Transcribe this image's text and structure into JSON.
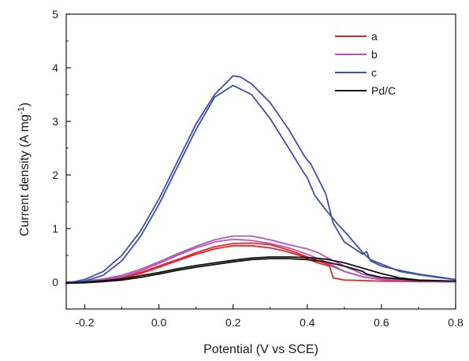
{
  "chart_data": {
    "type": "line",
    "title": "",
    "xlabel": "Potential (V vs SCE)",
    "ylabel": {
      "main": "Current density (A mg",
      "superscript": "-1",
      "tail": ")"
    },
    "xlim": [
      -0.25,
      0.8
    ],
    "ylim": [
      -0.5,
      5
    ],
    "xticks": [
      -0.2,
      0.0,
      0.2,
      0.4,
      0.6,
      0.8
    ],
    "xtick_labels": [
      "-0.2",
      "0.0",
      "0.2",
      "0.4",
      "0.6",
      "0.8"
    ],
    "yticks": [
      0,
      1,
      2,
      3,
      4,
      5
    ],
    "ytick_labels": [
      "0",
      "1",
      "2",
      "3",
      "4",
      "5"
    ],
    "grid": false,
    "legend_position": "top-right",
    "series": [
      {
        "name": "a",
        "color": "#e8242a",
        "forward": [
          [
            -0.25,
            0.0
          ],
          [
            -0.2,
            0.01
          ],
          [
            -0.15,
            0.04
          ],
          [
            -0.1,
            0.1
          ],
          [
            -0.05,
            0.18
          ],
          [
            0.0,
            0.3
          ],
          [
            0.05,
            0.42
          ],
          [
            0.1,
            0.55
          ],
          [
            0.15,
            0.66
          ],
          [
            0.2,
            0.72
          ],
          [
            0.25,
            0.73
          ],
          [
            0.3,
            0.7
          ],
          [
            0.35,
            0.6
          ],
          [
            0.4,
            0.47
          ],
          [
            0.45,
            0.35
          ],
          [
            0.5,
            0.2
          ],
          [
            0.55,
            0.1
          ],
          [
            0.6,
            0.05
          ],
          [
            0.65,
            0.03
          ],
          [
            0.7,
            0.02
          ],
          [
            0.75,
            0.01
          ],
          [
            0.8,
            0.01
          ]
        ],
        "backward": [
          [
            0.8,
            0.01
          ],
          [
            0.7,
            0.01
          ],
          [
            0.6,
            0.02
          ],
          [
            0.5,
            0.04
          ],
          [
            0.47,
            0.08
          ],
          [
            0.46,
            0.3
          ],
          [
            0.42,
            0.38
          ],
          [
            0.38,
            0.5
          ],
          [
            0.34,
            0.58
          ],
          [
            0.3,
            0.64
          ],
          [
            0.25,
            0.68
          ],
          [
            0.2,
            0.68
          ],
          [
            0.15,
            0.62
          ],
          [
            0.1,
            0.52
          ],
          [
            0.05,
            0.4
          ],
          [
            0.0,
            0.28
          ],
          [
            -0.05,
            0.16
          ],
          [
            -0.1,
            0.08
          ],
          [
            -0.15,
            0.03
          ],
          [
            -0.2,
            0.0
          ],
          [
            -0.25,
            -0.02
          ]
        ]
      },
      {
        "name": "b",
        "color": "#b455b9",
        "forward": [
          [
            -0.25,
            0.0
          ],
          [
            -0.2,
            0.02
          ],
          [
            -0.15,
            0.06
          ],
          [
            -0.1,
            0.13
          ],
          [
            -0.05,
            0.24
          ],
          [
            0.0,
            0.38
          ],
          [
            0.05,
            0.53
          ],
          [
            0.1,
            0.67
          ],
          [
            0.15,
            0.79
          ],
          [
            0.2,
            0.86
          ],
          [
            0.25,
            0.86
          ],
          [
            0.3,
            0.79
          ],
          [
            0.35,
            0.7
          ],
          [
            0.4,
            0.62
          ],
          [
            0.43,
            0.55
          ],
          [
            0.45,
            0.47
          ],
          [
            0.5,
            0.3
          ],
          [
            0.55,
            0.15
          ],
          [
            0.6,
            0.07
          ],
          [
            0.65,
            0.04
          ],
          [
            0.7,
            0.02
          ],
          [
            0.8,
            0.01
          ]
        ],
        "backward": [
          [
            0.8,
            0.01
          ],
          [
            0.7,
            0.02
          ],
          [
            0.6,
            0.05
          ],
          [
            0.55,
            0.1
          ],
          [
            0.5,
            0.2
          ],
          [
            0.45,
            0.38
          ],
          [
            0.4,
            0.52
          ],
          [
            0.35,
            0.64
          ],
          [
            0.3,
            0.72
          ],
          [
            0.25,
            0.78
          ],
          [
            0.2,
            0.8
          ],
          [
            0.15,
            0.75
          ],
          [
            0.1,
            0.64
          ],
          [
            0.05,
            0.5
          ],
          [
            0.0,
            0.35
          ],
          [
            -0.05,
            0.21
          ],
          [
            -0.1,
            0.1
          ],
          [
            -0.15,
            0.04
          ],
          [
            -0.2,
            0.01
          ],
          [
            -0.25,
            -0.01
          ]
        ]
      },
      {
        "name": "c",
        "color": "#3d4fa8",
        "forward": [
          [
            -0.25,
            -0.02
          ],
          [
            -0.2,
            0.05
          ],
          [
            -0.15,
            0.2
          ],
          [
            -0.1,
            0.5
          ],
          [
            -0.05,
            0.95
          ],
          [
            0.0,
            1.55
          ],
          [
            0.05,
            2.25
          ],
          [
            0.1,
            2.95
          ],
          [
            0.15,
            3.5
          ],
          [
            0.2,
            3.85
          ],
          [
            0.22,
            3.83
          ],
          [
            0.25,
            3.7
          ],
          [
            0.3,
            3.35
          ],
          [
            0.35,
            2.85
          ],
          [
            0.39,
            2.38
          ],
          [
            0.4,
            2.28
          ],
          [
            0.41,
            2.2
          ],
          [
            0.45,
            1.65
          ],
          [
            0.47,
            1.1
          ],
          [
            0.5,
            0.75
          ],
          [
            0.55,
            0.52
          ],
          [
            0.56,
            0.57
          ],
          [
            0.57,
            0.4
          ],
          [
            0.6,
            0.3
          ],
          [
            0.65,
            0.22
          ],
          [
            0.7,
            0.15
          ],
          [
            0.75,
            0.1
          ],
          [
            0.8,
            0.05
          ]
        ],
        "backward": [
          [
            0.8,
            0.05
          ],
          [
            0.75,
            0.09
          ],
          [
            0.7,
            0.14
          ],
          [
            0.65,
            0.2
          ],
          [
            0.6,
            0.34
          ],
          [
            0.57,
            0.42
          ],
          [
            0.55,
            0.55
          ],
          [
            0.5,
            0.95
          ],
          [
            0.48,
            1.1
          ],
          [
            0.45,
            1.35
          ],
          [
            0.42,
            1.62
          ],
          [
            0.4,
            1.95
          ],
          [
            0.39,
            2.05
          ],
          [
            0.35,
            2.5
          ],
          [
            0.3,
            3.05
          ],
          [
            0.25,
            3.5
          ],
          [
            0.2,
            3.67
          ],
          [
            0.15,
            3.45
          ],
          [
            0.1,
            2.85
          ],
          [
            0.05,
            2.15
          ],
          [
            0.0,
            1.45
          ],
          [
            -0.05,
            0.85
          ],
          [
            -0.1,
            0.4
          ],
          [
            -0.15,
            0.13
          ],
          [
            -0.2,
            0.02
          ],
          [
            -0.25,
            -0.02
          ]
        ]
      },
      {
        "name": "Pd/C",
        "color": "#111111",
        "forward": [
          [
            -0.25,
            -0.02
          ],
          [
            -0.2,
            0.0
          ],
          [
            -0.15,
            0.03
          ],
          [
            -0.1,
            0.06
          ],
          [
            -0.05,
            0.12
          ],
          [
            0.0,
            0.18
          ],
          [
            0.05,
            0.25
          ],
          [
            0.1,
            0.31
          ],
          [
            0.15,
            0.36
          ],
          [
            0.2,
            0.41
          ],
          [
            0.25,
            0.45
          ],
          [
            0.3,
            0.47
          ],
          [
            0.35,
            0.47
          ],
          [
            0.4,
            0.46
          ],
          [
            0.45,
            0.43
          ],
          [
            0.5,
            0.36
          ],
          [
            0.55,
            0.26
          ],
          [
            0.6,
            0.16
          ],
          [
            0.65,
            0.08
          ],
          [
            0.7,
            0.04
          ],
          [
            0.8,
            0.02
          ]
        ],
        "backward": [
          [
            0.8,
            0.02
          ],
          [
            0.7,
            0.03
          ],
          [
            0.6,
            0.09
          ],
          [
            0.56,
            0.15
          ],
          [
            0.55,
            0.2
          ],
          [
            0.5,
            0.3
          ],
          [
            0.45,
            0.38
          ],
          [
            0.4,
            0.42
          ],
          [
            0.35,
            0.44
          ],
          [
            0.3,
            0.44
          ],
          [
            0.25,
            0.42
          ],
          [
            0.2,
            0.38
          ],
          [
            0.15,
            0.33
          ],
          [
            0.1,
            0.28
          ],
          [
            0.05,
            0.22
          ],
          [
            0.0,
            0.15
          ],
          [
            -0.05,
            0.09
          ],
          [
            -0.1,
            0.04
          ],
          [
            -0.15,
            0.01
          ],
          [
            -0.2,
            -0.01
          ],
          [
            -0.25,
            -0.02
          ]
        ]
      }
    ]
  }
}
